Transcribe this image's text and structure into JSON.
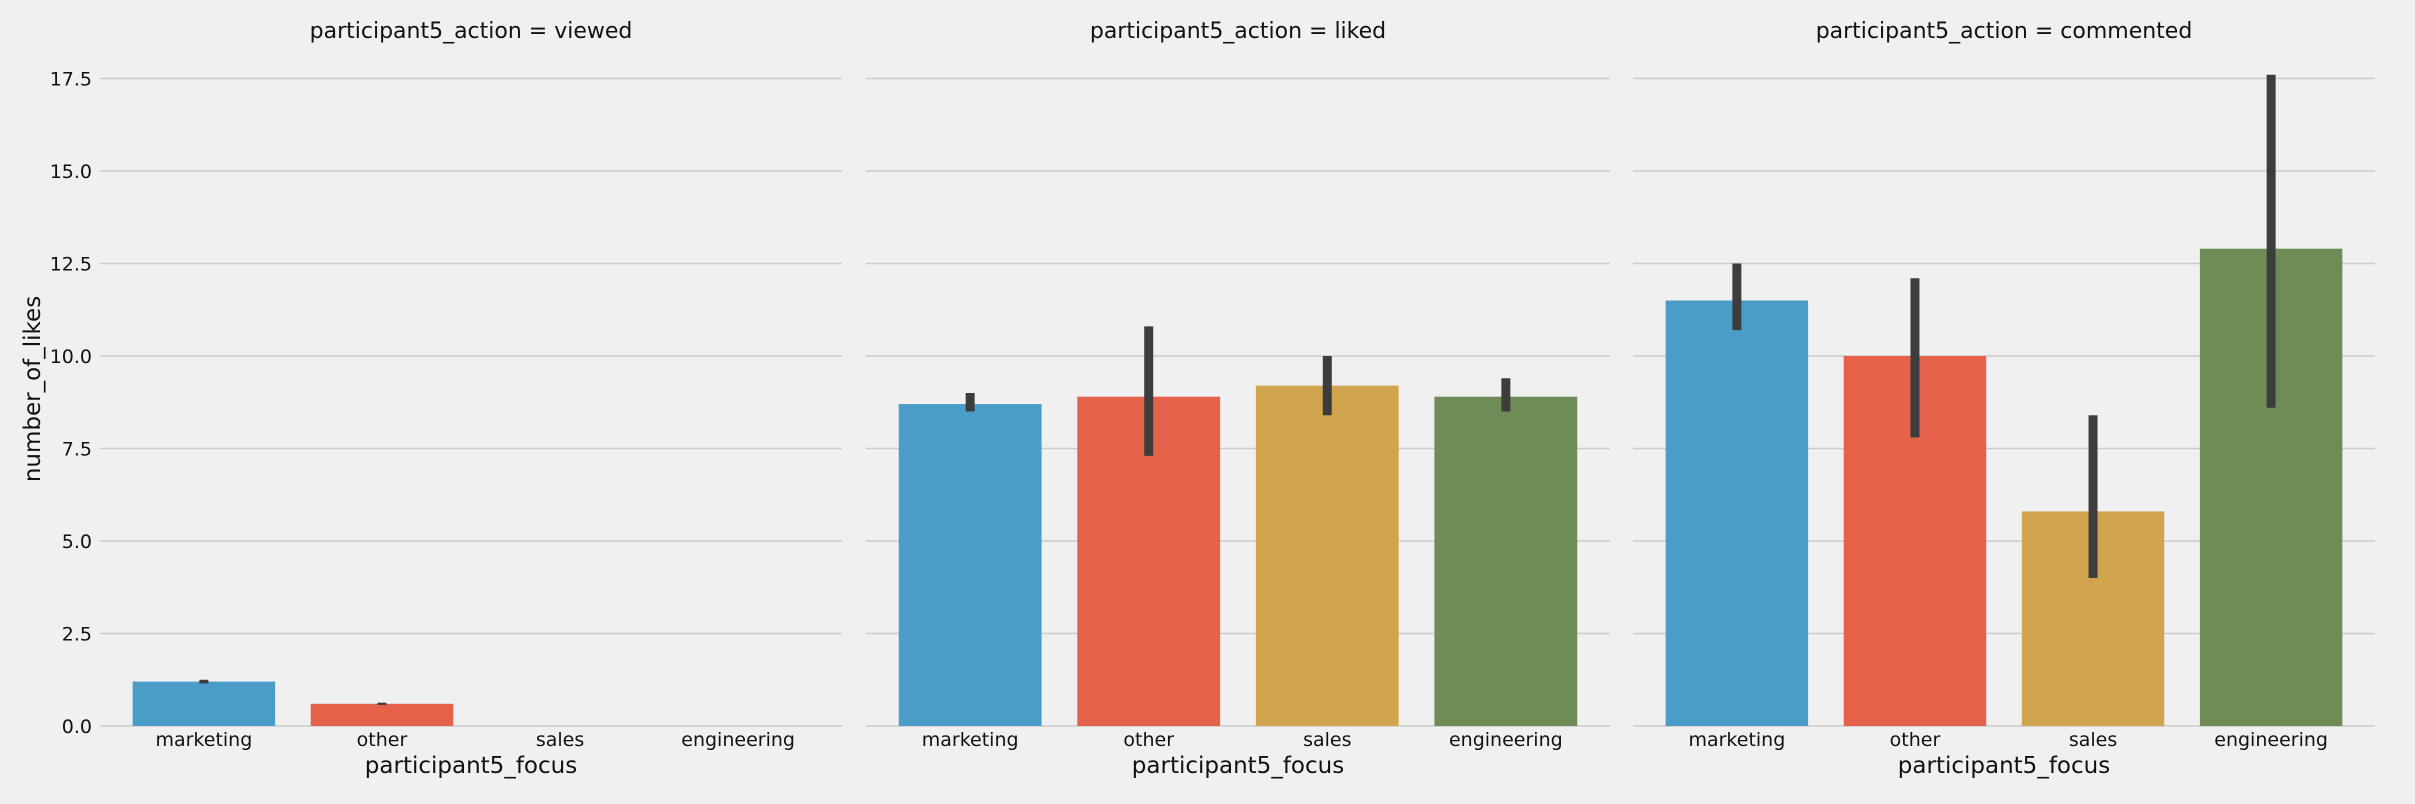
{
  "chart_data": {
    "type": "bar",
    "facet_variable": "participant5_action",
    "categories": [
      "marketing",
      "other",
      "sales",
      "engineering"
    ],
    "colors": [
      "#4a9cc9",
      "#e5614a",
      "#d1a54d",
      "#6f8c56"
    ],
    "ylabel": "number_of_likes",
    "xlabel": "participant5_focus",
    "ylim": [
      0,
      18
    ],
    "yticks": [
      "0.0",
      "2.5",
      "5.0",
      "7.5",
      "10.0",
      "12.5",
      "15.0",
      "17.5"
    ],
    "grid": true,
    "panels": [
      {
        "title": "participant5_action = viewed",
        "values": [
          1.2,
          0.6,
          0,
          0
        ],
        "ci_low": [
          1.15,
          0.57,
          null,
          null
        ],
        "ci_high": [
          1.25,
          0.63,
          null,
          null
        ]
      },
      {
        "title": "participant5_action = liked",
        "values": [
          8.7,
          8.9,
          9.2,
          8.9
        ],
        "ci_low": [
          8.5,
          7.3,
          8.4,
          8.5
        ],
        "ci_high": [
          9.0,
          10.8,
          10.0,
          9.4
        ]
      },
      {
        "title": "participant5_action = commented",
        "values": [
          11.5,
          10.0,
          5.8,
          12.9
        ],
        "ci_low": [
          10.7,
          7.8,
          4.0,
          8.6
        ],
        "ci_high": [
          12.5,
          12.1,
          8.4,
          17.6
        ]
      }
    ]
  }
}
